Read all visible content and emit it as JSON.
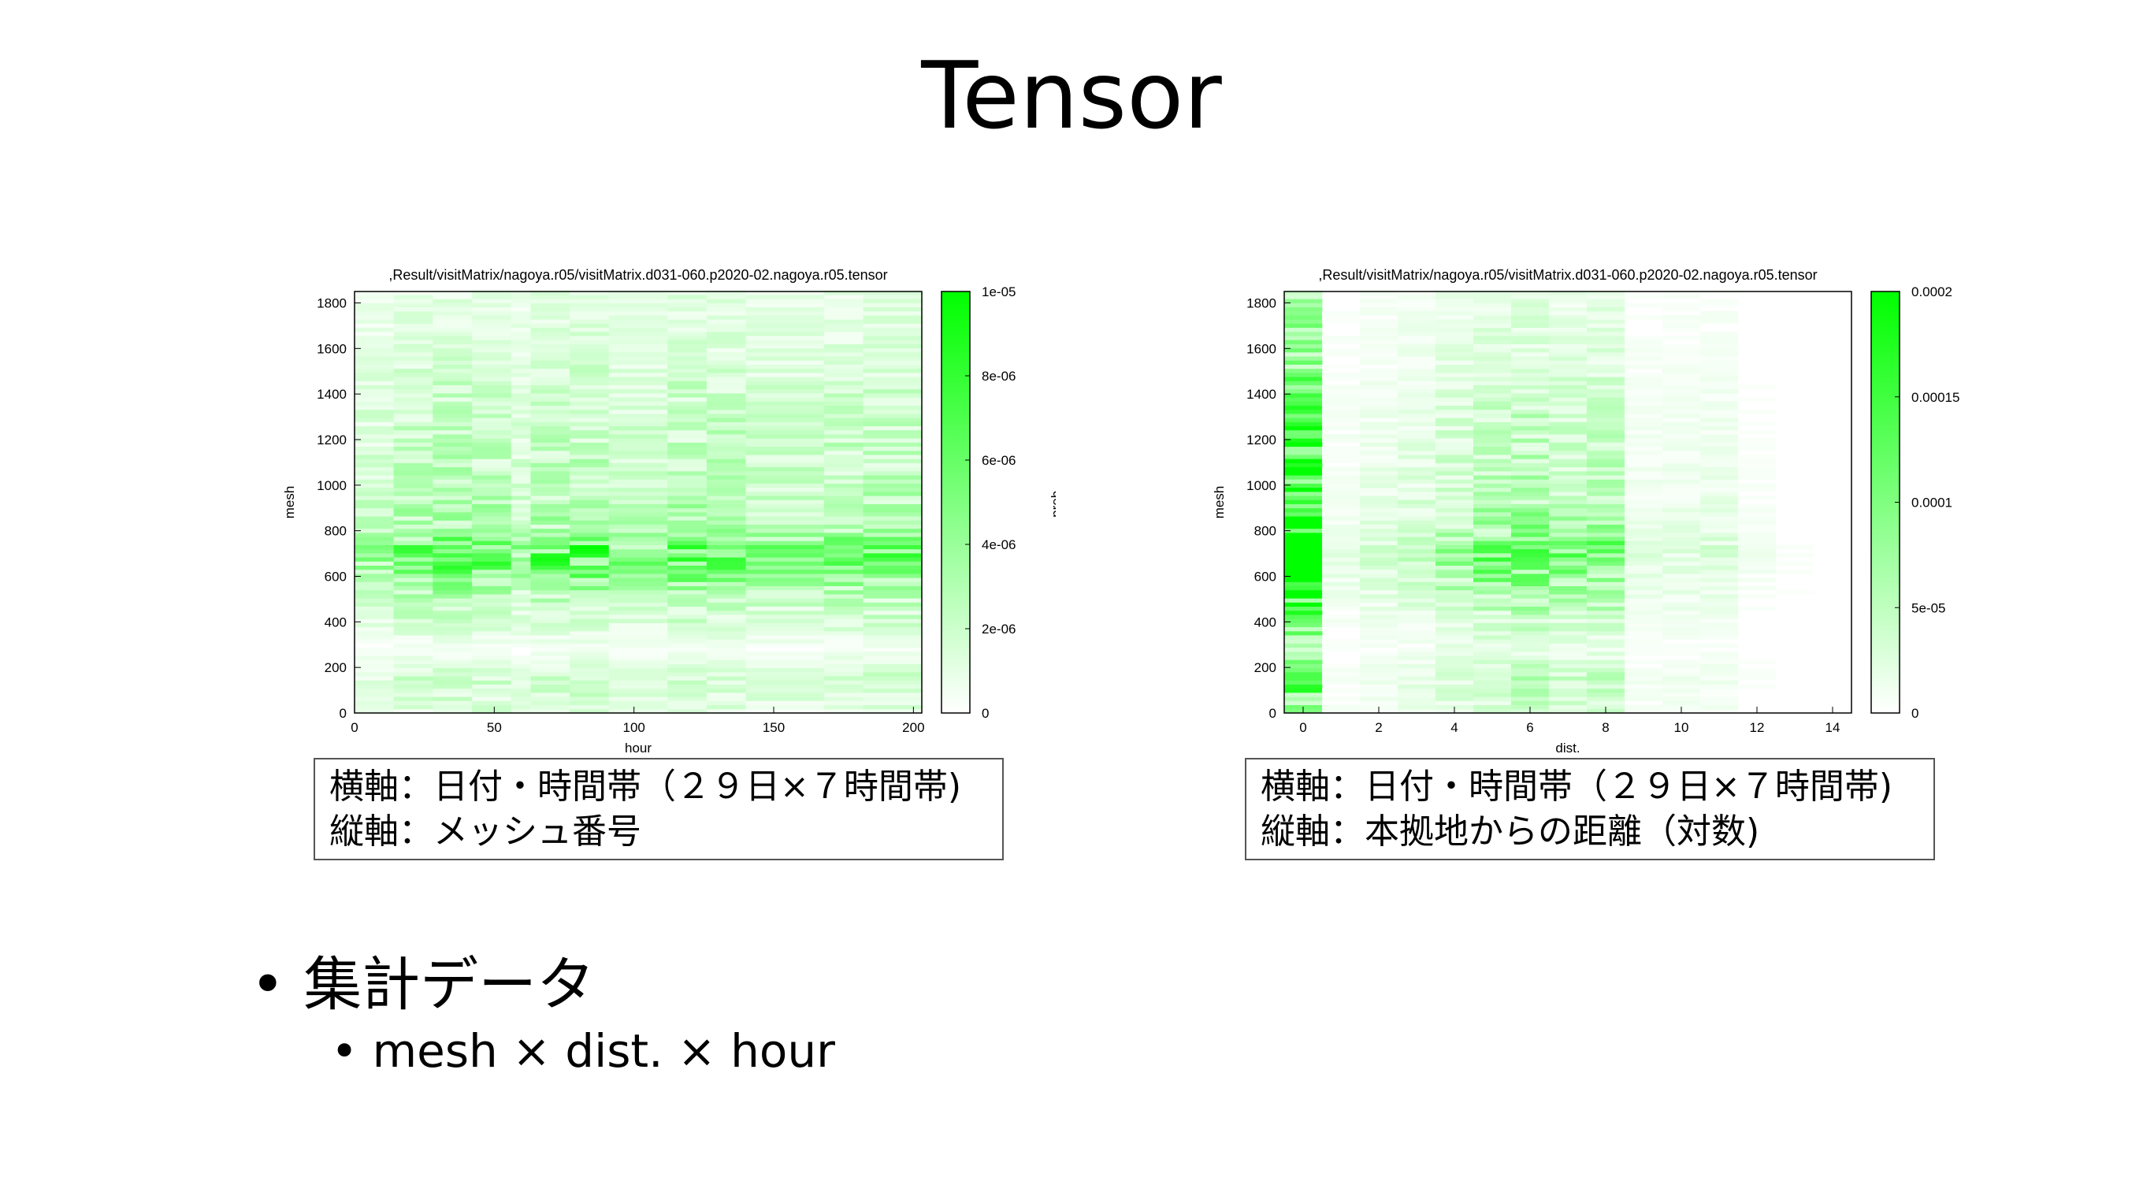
{
  "slide": {
    "title": "Tensor",
    "bullets": [
      {
        "marker": "•",
        "text": "集計データ"
      },
      {
        "marker": "•",
        "text": "mesh × dist. × hour"
      }
    ]
  },
  "captions": {
    "left": [
      "横軸：日付・時間帯（２９日×７時間帯)",
      "縦軸：メッシュ番号"
    ],
    "right": [
      "横軸：日付・時間帯（２９日×７時間帯)",
      "縦軸：本拠地からの距離（対数)"
    ]
  },
  "colors": {
    "accent": "#00ff00",
    "low": "#ffffff"
  },
  "chart_data": [
    {
      "type": "heatmap",
      "title": ",Result/visitMatrix/nagoya.r05/visitMatrix.d031-060.p2020-02.nagoya.r05.tensor",
      "xlabel": "hour",
      "ylabel": "mesh",
      "colorbar_label": "prob.",
      "xlim": [
        0,
        203
      ],
      "ylim": [
        0,
        1850
      ],
      "xticks": [
        0,
        50,
        100,
        150,
        200
      ],
      "xtick_labels": [
        "0",
        "50",
        "100",
        "150",
        "200"
      ],
      "yticks": [
        0,
        200,
        400,
        600,
        800,
        1000,
        1200,
        1400,
        1600,
        1800
      ],
      "ytick_labels": [
        "0",
        "200",
        "400",
        "600",
        "800",
        "1000",
        "1200",
        "1400",
        "1600",
        "1800"
      ],
      "colorbar_range": [
        0,
        1e-05
      ],
      "colorbar_ticks": [
        0,
        2e-06,
        4e-06,
        6e-06,
        8e-06,
        1e-05
      ],
      "colorbar_tick_labels": [
        "0",
        "2e-06",
        "4e-06",
        "6e-06",
        "8e-06",
        "1e-05"
      ],
      "x_bands": [
        {
          "x0": 0,
          "x1": 14,
          "mean": 1.6e-06
        },
        {
          "x0": 14,
          "x1": 28,
          "mean": 2.3e-06
        },
        {
          "x0": 28,
          "x1": 42,
          "mean": 2.5e-06
        },
        {
          "x0": 42,
          "x1": 56,
          "mean": 2.4e-06
        },
        {
          "x0": 56,
          "x1": 63,
          "mean": 1.6e-06
        },
        {
          "x0": 63,
          "x1": 77,
          "mean": 2.4e-06
        },
        {
          "x0": 77,
          "x1": 91,
          "mean": 2.5e-06
        },
        {
          "x0": 91,
          "x1": 112,
          "mean": 1.9e-06
        },
        {
          "x0": 112,
          "x1": 126,
          "mean": 2.5e-06
        },
        {
          "x0": 126,
          "x1": 140,
          "mean": 2.4e-06
        },
        {
          "x0": 140,
          "x1": 168,
          "mean": 2e-06
        },
        {
          "x0": 168,
          "x1": 182,
          "mean": 2.3e-06
        },
        {
          "x0": 182,
          "x1": 203,
          "mean": 2.4e-06
        }
      ],
      "y_profile": [
        {
          "mesh": 0,
          "weight": 0.55
        },
        {
          "mesh": 150,
          "weight": 0.75
        },
        {
          "mesh": 280,
          "weight": 0.15
        },
        {
          "mesh": 400,
          "weight": 0.7
        },
        {
          "mesh": 500,
          "weight": 1.0
        },
        {
          "mesh": 650,
          "weight": 2.2
        },
        {
          "mesh": 720,
          "weight": 2.6
        },
        {
          "mesh": 800,
          "weight": 1.3
        },
        {
          "mesh": 1000,
          "weight": 1.0
        },
        {
          "mesh": 1200,
          "weight": 0.9
        },
        {
          "mesh": 1400,
          "weight": 0.8
        },
        {
          "mesh": 1600,
          "weight": 0.55
        },
        {
          "mesh": 1850,
          "weight": 0.45
        }
      ]
    },
    {
      "type": "heatmap",
      "title": ",Result/visitMatrix/nagoya.r05/visitMatrix.d031-060.p2020-02.nagoya.r05.tensor",
      "xlabel": "dist.",
      "ylabel": "mesh",
      "xlim": [
        -0.5,
        14.5
      ],
      "ylim": [
        0,
        1850
      ],
      "xticks": [
        0,
        2,
        4,
        6,
        8,
        10,
        12,
        14
      ],
      "xtick_labels": [
        "0",
        "2",
        "4",
        "6",
        "8",
        "10",
        "12",
        "14"
      ],
      "yticks": [
        0,
        200,
        400,
        600,
        800,
        1000,
        1200,
        1400,
        1600,
        1800
      ],
      "ytick_labels": [
        "0",
        "200",
        "400",
        "600",
        "800",
        "1000",
        "1200",
        "1400",
        "1600",
        "1800"
      ],
      "colorbar_range": [
        0,
        0.0002
      ],
      "colorbar_ticks": [
        0,
        5e-05,
        0.0001,
        0.00015,
        0.0002
      ],
      "colorbar_tick_labels": [
        "0",
        "5e-05",
        "0.0001",
        "0.00015",
        "0.0002"
      ],
      "dist_values": [
        {
          "dist": 0,
          "mean": 0.000175
        },
        {
          "dist": 1,
          "mean": 1e-05
        },
        {
          "dist": 2,
          "mean": 1.8e-05
        },
        {
          "dist": 3,
          "mean": 2.6e-05
        },
        {
          "dist": 4,
          "mean": 4.2e-05
        },
        {
          "dist": 5,
          "mean": 5.6e-05
        },
        {
          "dist": 6,
          "mean": 6.6e-05
        },
        {
          "dist": 7,
          "mean": 5e-05
        },
        {
          "dist": 8,
          "mean": 5.6e-05
        },
        {
          "dist": 9,
          "mean": 1.2e-05
        },
        {
          "dist": 10,
          "mean": 1.4e-05
        },
        {
          "dist": 11,
          "mean": 1.6e-05
        },
        {
          "dist": 12,
          "mean": 5e-06
        },
        {
          "dist": 13,
          "mean": 2e-06
        },
        {
          "dist": 14,
          "mean": 0
        }
      ],
      "y_profile": [
        {
          "mesh": 0,
          "weight": 0.5
        },
        {
          "mesh": 150,
          "weight": 0.75
        },
        {
          "mesh": 280,
          "weight": 0.3
        },
        {
          "mesh": 450,
          "weight": 0.8
        },
        {
          "mesh": 600,
          "weight": 1.6
        },
        {
          "mesh": 700,
          "weight": 2.0
        },
        {
          "mesh": 800,
          "weight": 1.2
        },
        {
          "mesh": 1000,
          "weight": 0.9
        },
        {
          "mesh": 1200,
          "weight": 0.75
        },
        {
          "mesh": 1400,
          "weight": 0.6
        },
        {
          "mesh": 1600,
          "weight": 0.45
        },
        {
          "mesh": 1850,
          "weight": 0.35
        }
      ]
    }
  ]
}
